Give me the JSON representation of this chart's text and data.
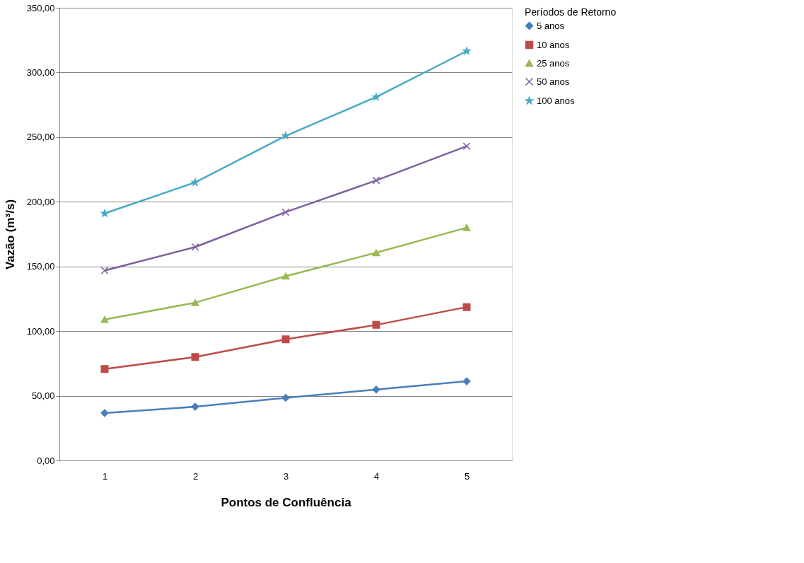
{
  "chart_data": {
    "type": "line",
    "xlabel": "Pontos de Confluência",
    "ylabel": "Vazão (m³/s)",
    "legend_title": "Períodos de Retorno",
    "categories": [
      "1",
      "2",
      "3",
      "4",
      "5"
    ],
    "series": [
      {
        "name": "5 anos",
        "color": "#4a7ebb",
        "marker": "diamond",
        "values": [
          36.7,
          41.5,
          48.4,
          54.8,
          61.2
        ]
      },
      {
        "name": "10 anos",
        "color": "#be4b48",
        "marker": "square",
        "values": [
          70.7,
          80,
          93.6,
          104.8,
          118.6
        ]
      },
      {
        "name": "25 anos",
        "color": "#98b954",
        "marker": "triangle",
        "values": [
          109,
          122,
          142.5,
          160.6,
          180
        ]
      },
      {
        "name": "50 anos",
        "color": "#7d60a0",
        "marker": "cross",
        "values": [
          146.8,
          165,
          192,
          216.5,
          243
        ]
      },
      {
        "name": "100 anos",
        "color": "#46aac5",
        "marker": "star",
        "values": [
          191,
          215,
          251,
          281,
          316.5
        ]
      }
    ],
    "ylim": [
      0,
      350
    ],
    "yticks": [
      {
        "value": 0,
        "label": "0,00"
      },
      {
        "value": 50,
        "label": "50,00"
      },
      {
        "value": 100,
        "label": "100,00"
      },
      {
        "value": 150,
        "label": "150,00"
      },
      {
        "value": 200,
        "label": "200,00"
      },
      {
        "value": 250,
        "label": "250,00"
      },
      {
        "value": 300,
        "label": "300,00"
      },
      {
        "value": 350,
        "label": "350,00"
      }
    ],
    "grid": "y",
    "legend": "right",
    "line_style": "solid"
  }
}
